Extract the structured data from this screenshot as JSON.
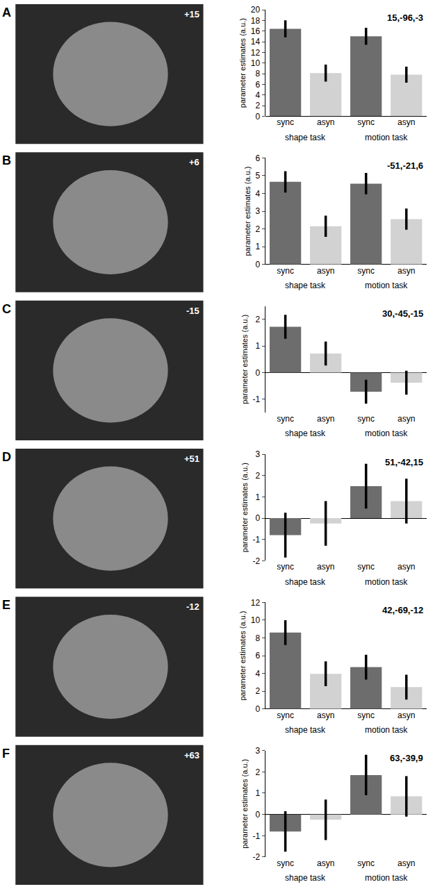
{
  "chart_data": [
    {
      "type": "bar",
      "panel": "A",
      "slice_label": "+15",
      "title": "15,-96,-3",
      "y_label": "parameter estimates (a.u.)",
      "categories": [
        "sync",
        "asyn",
        "sync",
        "asyn"
      ],
      "group_labels": [
        "shape task",
        "motion task"
      ],
      "values": [
        16.4,
        8.1,
        15.0,
        7.8
      ],
      "errors": [
        1.6,
        1.6,
        1.6,
        1.5
      ],
      "colors": [
        "#6d6d6d",
        "#d2d2d2",
        "#6d6d6d",
        "#d2d2d2"
      ],
      "ylim": [
        0,
        20
      ],
      "yticks": [
        0,
        2,
        4,
        6,
        8,
        10,
        12,
        14,
        16,
        18,
        20
      ],
      "grid": false
    },
    {
      "type": "bar",
      "panel": "B",
      "slice_label": "+6",
      "title": "-51,-21,6",
      "y_label": "parameter estimates (a.u.)",
      "categories": [
        "sync",
        "asyn",
        "sync",
        "asyn"
      ],
      "group_labels": [
        "shape task",
        "motion task"
      ],
      "values": [
        4.65,
        2.15,
        4.55,
        2.55
      ],
      "errors": [
        0.6,
        0.6,
        0.6,
        0.6
      ],
      "colors": [
        "#6d6d6d",
        "#d2d2d2",
        "#6d6d6d",
        "#d2d2d2"
      ],
      "ylim": [
        0,
        6
      ],
      "yticks": [
        0,
        1,
        2,
        3,
        4,
        5,
        6
      ],
      "grid": false
    },
    {
      "type": "bar",
      "panel": "C",
      "slice_label": "-15",
      "title": "30,-45,-15",
      "y_label": "parameter estimates (a.u.)",
      "categories": [
        "sync",
        "asyn",
        "sync",
        "asyn"
      ],
      "group_labels": [
        "shape task",
        "motion task"
      ],
      "values": [
        1.72,
        0.72,
        -0.72,
        -0.38
      ],
      "errors": [
        0.45,
        0.45,
        0.45,
        0.45
      ],
      "colors": [
        "#6d6d6d",
        "#d2d2d2",
        "#6d6d6d",
        "#d2d2d2"
      ],
      "ylim": [
        -1.5,
        2.5
      ],
      "yticks": [
        -1,
        0,
        1,
        2
      ],
      "grid": false
    },
    {
      "type": "bar",
      "panel": "D",
      "slice_label": "+51",
      "title": "51,-42,15",
      "y_label": "parameter estimates (a.u.)",
      "categories": [
        "sync",
        "asyn",
        "sync",
        "asyn"
      ],
      "group_labels": [
        "shape task",
        "motion task"
      ],
      "values": [
        -0.8,
        -0.25,
        1.5,
        0.8
      ],
      "errors": [
        1.05,
        1.05,
        1.05,
        1.05
      ],
      "colors": [
        "#6d6d6d",
        "#d2d2d2",
        "#6d6d6d",
        "#d2d2d2"
      ],
      "ylim": [
        -2,
        3
      ],
      "yticks": [
        -2,
        -1,
        0,
        1,
        2,
        3
      ],
      "grid": false
    },
    {
      "type": "bar",
      "panel": "E",
      "slice_label": "-12",
      "title": "42,-69,-12",
      "y_label": "parameter estimates (a.u.)",
      "categories": [
        "sync",
        "asyn",
        "sync",
        "asyn"
      ],
      "group_labels": [
        "shape task",
        "motion task"
      ],
      "values": [
        8.6,
        3.95,
        4.7,
        2.45
      ],
      "errors": [
        1.4,
        1.4,
        1.4,
        1.4
      ],
      "colors": [
        "#6d6d6d",
        "#d2d2d2",
        "#6d6d6d",
        "#d2d2d2"
      ],
      "ylim": [
        0,
        12
      ],
      "yticks": [
        0,
        2,
        4,
        6,
        8,
        10,
        12
      ],
      "grid": false
    },
    {
      "type": "bar",
      "panel": "F",
      "slice_label": "+63",
      "title": "63,-39,9",
      "y_label": "parameter estimates (a.u.)",
      "categories": [
        "sync",
        "asyn",
        "sync",
        "asyn"
      ],
      "group_labels": [
        "shape task",
        "motion task"
      ],
      "values": [
        -0.8,
        -0.25,
        1.85,
        0.85
      ],
      "errors": [
        0.95,
        0.95,
        0.95,
        0.95
      ],
      "colors": [
        "#6d6d6d",
        "#d2d2d2",
        "#6d6d6d",
        "#d2d2d2"
      ],
      "ylim": [
        -2,
        3
      ],
      "yticks": [
        -2,
        -1,
        0,
        1,
        2,
        3
      ],
      "grid": false
    }
  ]
}
